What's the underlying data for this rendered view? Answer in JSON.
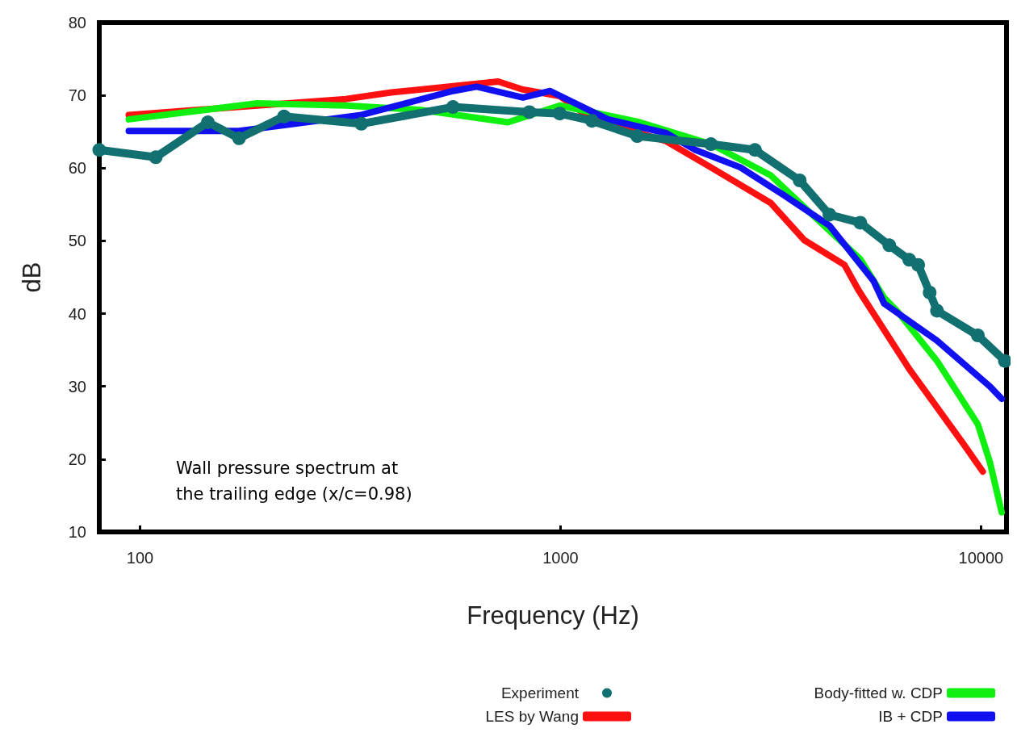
{
  "chart_data": {
    "type": "line",
    "xlabel": "Frequency (Hz)",
    "ylabel": "dB",
    "log": "x",
    "xlim": [
      80,
      11500
    ],
    "xticks": [
      100,
      1000,
      10000
    ],
    "ylim": [
      10,
      80
    ],
    "yticks": [
      10,
      20,
      30,
      40,
      50,
      60,
      70,
      80
    ],
    "grid": false,
    "legend": "bottom right",
    "line_style": "solid",
    "marker": "none",
    "annotations": [
      "Wall pressure spectrum at\nthe trailing edge (x/c=0.98)"
    ],
    "series": [
      {
        "name": "Experiment",
        "color": "#137070",
        "marker": "circle",
        "x": [
          80,
          109,
          145,
          172,
          220,
          336,
          555,
          843,
          996,
          1188,
          1522,
          2279,
          2900,
          3706,
          4361,
          5163,
          6050,
          6751,
          7090,
          7550,
          7860,
          9830,
          11400
        ],
        "values": [
          62.5,
          61.5,
          66.3,
          64.1,
          67.1,
          66.1,
          68.4,
          67.7,
          67.5,
          66.5,
          64.4,
          63.3,
          62.5,
          58.3,
          53.6,
          52.5,
          49.4,
          47.4,
          46.7,
          42.9,
          40.4,
          37,
          33.5
        ]
      },
      {
        "name": "LES by Wang",
        "color": "#ff1010",
        "x": [
          94,
          309,
          396,
          711,
          814,
          996,
          1188,
          1785,
          2279,
          3163,
          3800,
          4735,
          5117,
          6751,
          9110,
          10100
        ],
        "values": [
          67.3,
          69.5,
          70.4,
          71.9,
          70.8,
          69.9,
          66.7,
          63.7,
          60.1,
          55.2,
          50.1,
          46.7,
          43.2,
          32.4,
          22,
          18.3
        ]
      },
      {
        "name": "Body-fitted w. CDP",
        "color": "#10f010",
        "x": [
          94,
          190,
          309,
          467,
          750,
          996,
          1522,
          2279,
          3163,
          4020,
          5163,
          5883,
          6310,
          7860,
          9830,
          10500,
          11200
        ],
        "values": [
          66.7,
          68.9,
          68.6,
          68,
          66.3,
          68.6,
          66.4,
          63.3,
          59,
          53.3,
          47.5,
          42.2,
          40.4,
          33.5,
          24.8,
          19.6,
          12.7
        ]
      },
      {
        "name": "IB + CDP",
        "color": "#1010f0",
        "x": [
          94,
          172,
          336,
          555,
          632,
          814,
          945,
          1297,
          1785,
          2093,
          2678,
          3394,
          4361,
          5552,
          5883,
          7860,
          10500,
          11200
        ],
        "values": [
          65.1,
          65.1,
          67.3,
          70.6,
          71.2,
          69.7,
          70.6,
          66.7,
          64.8,
          62.5,
          60.1,
          56.3,
          52.1,
          44.5,
          41.4,
          36.3,
          30,
          28.3
        ]
      }
    ]
  }
}
